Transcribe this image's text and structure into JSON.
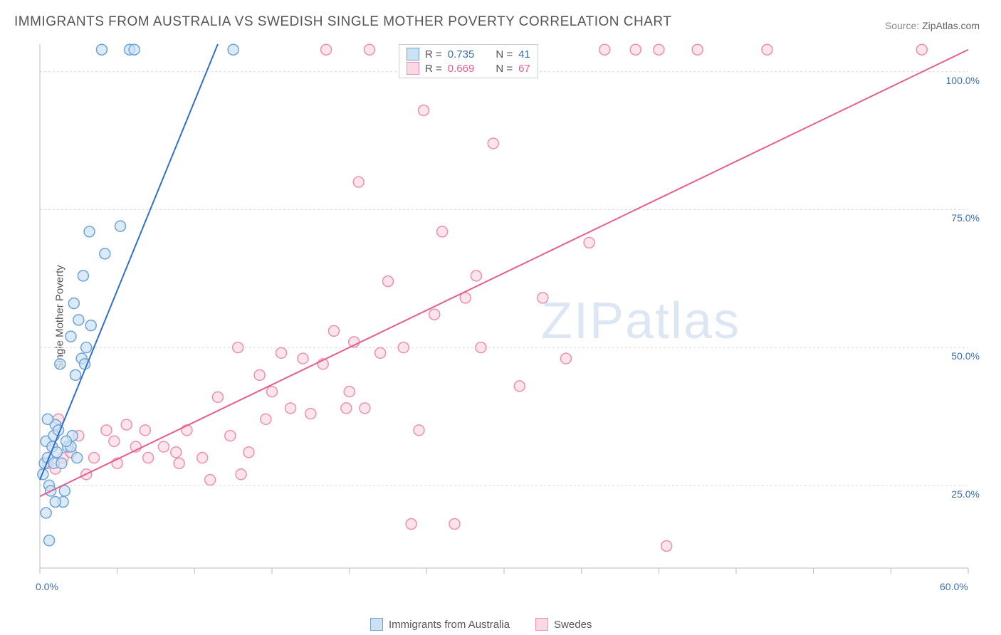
{
  "title": "IMMIGRANTS FROM AUSTRALIA VS SWEDISH SINGLE MOTHER POVERTY CORRELATION CHART",
  "source_label": "Source:",
  "source_name": "ZipAtlas.com",
  "ylabel": "Single Mother Poverty",
  "watermark": "ZIPatlas",
  "chart": {
    "type": "scatter",
    "background": "#ffffff",
    "grid_color": "#d8d8d8",
    "axis_color": "#bbbbbb",
    "axis_label_color": "#3b6db0",
    "xlim": [
      0,
      60
    ],
    "ylim": [
      10,
      105
    ],
    "x_ticks": [
      0,
      5,
      10,
      15,
      20,
      25,
      30,
      35,
      40,
      45,
      50,
      55,
      60
    ],
    "x_tick_labels": {
      "0": "0.0%",
      "60": "60.0%"
    },
    "y_gridlines": [
      25,
      50,
      75,
      100
    ],
    "y_tick_labels": {
      "25": "25.0%",
      "50": "50.0%",
      "75": "75.0%",
      "100": "100.0%"
    },
    "marker_radius": 7.5,
    "marker_stroke_width": 1.5,
    "line_width": 2
  },
  "series": [
    {
      "name": "Immigrants from Australia",
      "fill": "#cce1f4",
      "stroke": "#6fa3d8",
      "line_color": "#2f6fd0",
      "R": "0.735",
      "N": "41",
      "trend": {
        "x1": 0,
        "y1": 26,
        "x2": 11.5,
        "y2": 105
      },
      "points": [
        [
          0.2,
          27
        ],
        [
          0.3,
          29
        ],
        [
          0.4,
          33
        ],
        [
          0.5,
          30
        ],
        [
          0.6,
          25
        ],
        [
          0.7,
          24
        ],
        [
          0.8,
          32
        ],
        [
          0.9,
          34
        ],
        [
          1.0,
          36
        ],
        [
          1.1,
          31
        ],
        [
          1.2,
          35
        ],
        [
          1.3,
          47
        ],
        [
          1.5,
          22
        ],
        [
          1.8,
          32
        ],
        [
          2.0,
          52
        ],
        [
          2.1,
          34
        ],
        [
          2.3,
          45
        ],
        [
          2.2,
          58
        ],
        [
          2.4,
          30
        ],
        [
          2.5,
          55
        ],
        [
          2.7,
          48
        ],
        [
          2.8,
          63
        ],
        [
          2.9,
          47
        ],
        [
          3.2,
          71
        ],
        [
          3.0,
          50
        ],
        [
          3.3,
          54
        ],
        [
          4.2,
          67
        ],
        [
          5.2,
          72
        ],
        [
          0.6,
          15
        ],
        [
          0.4,
          20
        ],
        [
          1.0,
          22
        ],
        [
          1.6,
          24
        ],
        [
          0.9,
          29
        ],
        [
          4.0,
          104
        ],
        [
          5.8,
          104
        ],
        [
          6.1,
          104
        ],
        [
          12.5,
          104
        ],
        [
          2.0,
          32
        ],
        [
          1.4,
          29
        ],
        [
          1.7,
          33
        ],
        [
          0.5,
          37
        ]
      ]
    },
    {
      "name": "Swedes",
      "fill": "#fbd8e3",
      "stroke": "#ed8fb0",
      "line_color": "#e85d8c",
      "R": "0.669",
      "N": "67",
      "trend": {
        "x1": 0,
        "y1": 23,
        "x2": 60,
        "y2": 104
      },
      "points": [
        [
          0.5,
          29
        ],
        [
          1.0,
          28
        ],
        [
          1.5,
          30
        ],
        [
          2.0,
          31
        ],
        [
          2.5,
          34
        ],
        [
          3.0,
          27
        ],
        [
          3.5,
          30
        ],
        [
          4.3,
          35
        ],
        [
          5.0,
          29
        ],
        [
          5.6,
          36
        ],
        [
          6.2,
          32
        ],
        [
          7.0,
          30
        ],
        [
          8.8,
          31
        ],
        [
          9.5,
          35
        ],
        [
          10.5,
          30
        ],
        [
          11.0,
          26
        ],
        [
          11.5,
          41
        ],
        [
          12.3,
          34
        ],
        [
          12.8,
          50
        ],
        [
          13.5,
          31
        ],
        [
          14.2,
          45
        ],
        [
          15.0,
          42
        ],
        [
          15.6,
          49
        ],
        [
          16.2,
          39
        ],
        [
          17.0,
          48
        ],
        [
          17.5,
          38
        ],
        [
          18.3,
          47
        ],
        [
          19.0,
          53
        ],
        [
          20.0,
          42
        ],
        [
          20.6,
          80
        ],
        [
          21.0,
          39
        ],
        [
          22.0,
          49
        ],
        [
          22.5,
          62
        ],
        [
          23.5,
          50
        ],
        [
          24.0,
          18
        ],
        [
          24.5,
          35
        ],
        [
          25.5,
          56
        ],
        [
          26.0,
          71
        ],
        [
          26.8,
          18
        ],
        [
          27.5,
          59
        ],
        [
          28.5,
          50
        ],
        [
          29.3,
          87
        ],
        [
          31.0,
          43
        ],
        [
          32.5,
          59
        ],
        [
          34.0,
          48
        ],
        [
          35.5,
          69
        ],
        [
          36.5,
          104
        ],
        [
          40.0,
          104
        ],
        [
          40.5,
          14
        ],
        [
          42.5,
          104
        ],
        [
          47.0,
          104
        ],
        [
          57.0,
          104
        ],
        [
          38.5,
          104
        ],
        [
          4.8,
          33
        ],
        [
          6.8,
          35
        ],
        [
          9.0,
          29
        ],
        [
          18.5,
          104
        ],
        [
          21.3,
          104
        ],
        [
          24.8,
          93
        ],
        [
          1.2,
          37
        ],
        [
          0.8,
          32
        ],
        [
          14.6,
          37
        ],
        [
          13.0,
          27
        ],
        [
          8.0,
          32
        ],
        [
          19.8,
          39
        ],
        [
          28.2,
          63
        ],
        [
          20.3,
          51
        ]
      ]
    }
  ],
  "stats_legend": {
    "R_label": "R =",
    "N_label": "N ="
  },
  "bottom_legend": {
    "series1": "Immigrants from Australia",
    "series2": "Swedes"
  }
}
